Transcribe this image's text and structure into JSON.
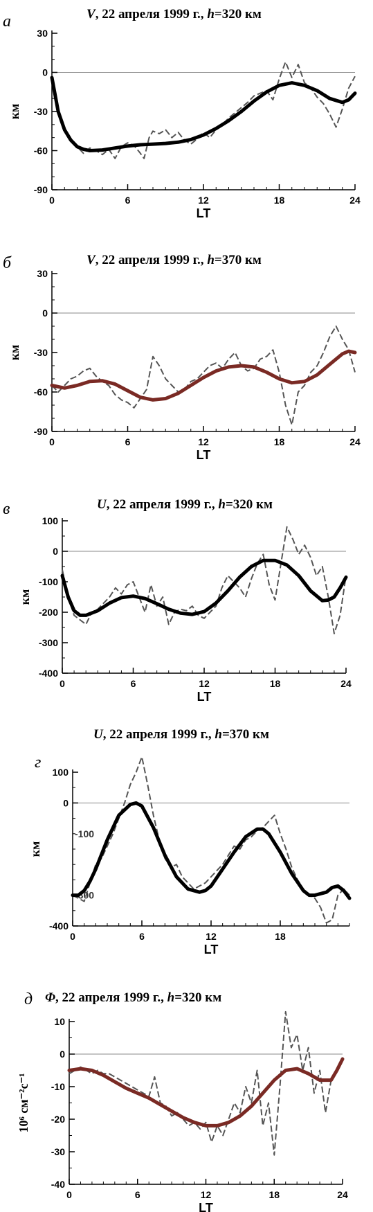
{
  "chart_data": [
    {
      "type": "line",
      "panel_label": "а",
      "title_var": "V",
      "title_rest": ", 22 апреля 1999 г., ",
      "title_h": "h",
      "title_alt": "=320 км",
      "xlabel": "LT",
      "ylabel": "км",
      "xlim": [
        0,
        24
      ],
      "ylim": [
        -90,
        30
      ],
      "xticks": [
        0,
        6,
        12,
        18,
        24
      ],
      "yticks": [
        -90,
        -60,
        -30,
        0,
        30
      ],
      "zero_line": true,
      "fit_color": "#000000",
      "series": [
        {
          "style": "dashed",
          "x": [
            0,
            0.5,
            1,
            1.5,
            2,
            2.5,
            3,
            3.5,
            4,
            4.5,
            5,
            5.5,
            6,
            6.5,
            7,
            7.3,
            7.7,
            8,
            8.5,
            9,
            9.5,
            10,
            10.5,
            11,
            11.5,
            12,
            12.5,
            13,
            13.5,
            14,
            14.5,
            15,
            15.5,
            16,
            16.5,
            17,
            17.5,
            18,
            18.5,
            19,
            19.5,
            20,
            20.5,
            21,
            21.5,
            22,
            22.5,
            23,
            23.5,
            24
          ],
          "y": [
            -2,
            -30,
            -45,
            -52,
            -57,
            -62,
            -58,
            -60,
            -63,
            -59,
            -66,
            -57,
            -54,
            -56,
            -62,
            -66,
            -50,
            -45,
            -47,
            -44,
            -50,
            -46,
            -52,
            -55,
            -51,
            -46,
            -50,
            -44,
            -40,
            -35,
            -31,
            -27,
            -23,
            -18,
            -16,
            -14,
            -21,
            -5,
            8,
            -4,
            6,
            -8,
            -12,
            -19,
            -24,
            -32,
            -42,
            -28,
            -12,
            -3
          ]
        },
        {
          "style": "solid",
          "x": [
            0,
            0.5,
            1,
            1.5,
            2,
            2.5,
            3,
            4,
            5,
            6,
            7,
            8,
            9,
            10,
            11,
            12,
            13,
            14,
            15,
            16,
            17,
            18,
            19,
            20,
            21,
            22,
            23,
            23.5,
            24
          ],
          "y": [
            -4,
            -30,
            -44,
            -52,
            -57,
            -59,
            -60,
            -59.5,
            -58,
            -56.5,
            -55.5,
            -55,
            -54.5,
            -53.5,
            -51.5,
            -48,
            -43,
            -37,
            -30,
            -22,
            -15,
            -10,
            -8,
            -10,
            -14,
            -20,
            -23,
            -21,
            -16
          ]
        }
      ]
    },
    {
      "type": "line",
      "panel_label": "б",
      "title_var": "V",
      "title_rest": ", 22 апреля 1999 г., ",
      "title_h": "h",
      "title_alt": "=370 км",
      "xlabel": "LT",
      "ylabel": "км",
      "xlim": [
        0,
        24
      ],
      "ylim": [
        -90,
        30
      ],
      "xticks": [
        0,
        6,
        12,
        18,
        24
      ],
      "yticks": [
        -90,
        -60,
        -30,
        0,
        30
      ],
      "zero_line": true,
      "fit_color": "#7a2a24",
      "series": [
        {
          "style": "dashed",
          "x": [
            0,
            0.5,
            1,
            1.5,
            2,
            2.5,
            3,
            3.5,
            4,
            4.5,
            5,
            5.5,
            6,
            6.5,
            7,
            7.5,
            8,
            8.5,
            9,
            9.5,
            10,
            10.5,
            11,
            11.5,
            12,
            12.5,
            13,
            13.5,
            14,
            14.5,
            15,
            15.5,
            16,
            16.5,
            17,
            17.5,
            18,
            18.5,
            19,
            19.5,
            20,
            20.5,
            21,
            21.5,
            22,
            22.5,
            23,
            23.5,
            24
          ],
          "y": [
            -55,
            -60,
            -55,
            -50,
            -48,
            -44,
            -42,
            -48,
            -52,
            -55,
            -62,
            -66,
            -68,
            -72,
            -65,
            -58,
            -33,
            -40,
            -50,
            -55,
            -60,
            -58,
            -52,
            -50,
            -45,
            -40,
            -38,
            -42,
            -35,
            -30,
            -40,
            -44,
            -42,
            -35,
            -33,
            -28,
            -45,
            -70,
            -85,
            -60,
            -55,
            -45,
            -40,
            -30,
            -18,
            -10,
            -20,
            -28,
            -45
          ]
        },
        {
          "style": "solid",
          "x": [
            0,
            1,
            2,
            3,
            4,
            5,
            6,
            7,
            8,
            9,
            10,
            11,
            12,
            13,
            14,
            15,
            16,
            17,
            18,
            19,
            20,
            21,
            22,
            23,
            23.5,
            24
          ],
          "y": [
            -55,
            -57,
            -55,
            -52,
            -51.5,
            -54,
            -59,
            -64,
            -66,
            -65,
            -61,
            -55,
            -49,
            -44,
            -41,
            -40,
            -41,
            -45,
            -50,
            -53,
            -52,
            -47,
            -39,
            -31,
            -29,
            -30
          ]
        }
      ]
    },
    {
      "type": "line",
      "panel_label": "в",
      "title_var": "U",
      "title_rest": ", 22 апреля 1999 г., ",
      "title_h": "h",
      "title_alt": "=320 км",
      "xlabel": "LT",
      "ylabel": "км",
      "xlim": [
        0,
        24
      ],
      "ylim": [
        -400,
        100
      ],
      "xticks": [
        0,
        6,
        12,
        18,
        24
      ],
      "yticks": [
        -400,
        -300,
        -200,
        -100,
        0,
        100
      ],
      "zero_line": true,
      "fit_color": "#000000",
      "series": [
        {
          "style": "dashed",
          "x": [
            0,
            0.5,
            1,
            1.5,
            2,
            2.5,
            3,
            3.5,
            4,
            4.5,
            5,
            5.5,
            6,
            6.5,
            7,
            7.5,
            8,
            8.5,
            9,
            9.5,
            10,
            10.5,
            11,
            11.5,
            12,
            12.5,
            13,
            13.5,
            14,
            14.5,
            15,
            15.5,
            16,
            16.5,
            17,
            17.5,
            18,
            18.5,
            19,
            19.5,
            20,
            20.5,
            21,
            21.5,
            22,
            22.5,
            23,
            23.5,
            24
          ],
          "y": [
            -60,
            -150,
            -210,
            -225,
            -240,
            -200,
            -190,
            -170,
            -150,
            -120,
            -140,
            -110,
            -100,
            -150,
            -200,
            -110,
            -180,
            -150,
            -240,
            -200,
            -190,
            -195,
            -180,
            -210,
            -220,
            -200,
            -180,
            -120,
            -80,
            -100,
            -120,
            -150,
            -90,
            -40,
            -10,
            -110,
            -160,
            -40,
            80,
            40,
            -10,
            20,
            -20,
            -80,
            -50,
            -150,
            -270,
            -210,
            -80
          ]
        },
        {
          "style": "solid",
          "x": [
            0,
            0.5,
            1,
            1.5,
            2,
            3,
            4,
            5,
            6,
            7,
            8,
            9,
            10,
            11,
            12,
            13,
            14,
            15,
            16,
            17,
            18,
            19,
            20,
            21,
            22,
            22.5,
            23,
            23.5,
            24
          ],
          "y": [
            -80,
            -150,
            -195,
            -210,
            -210,
            -195,
            -170,
            -152,
            -147,
            -155,
            -172,
            -190,
            -203,
            -207,
            -198,
            -170,
            -130,
            -85,
            -50,
            -30,
            -30,
            -45,
            -80,
            -130,
            -162,
            -160,
            -150,
            -120,
            -85
          ]
        }
      ]
    },
    {
      "type": "line",
      "panel_label": "г",
      "title_var": "U",
      "title_rest": ", 22 апреля 1999 г., ",
      "title_h": "h",
      "title_alt": "=370 км",
      "xlabel": "LT",
      "ylabel": "км",
      "xlim": [
        0,
        24
      ],
      "ylim": [
        -400,
        100
      ],
      "xticks": [
        0,
        6,
        12,
        18
      ],
      "yticks": [
        -400,
        0,
        100
      ],
      "extra_ytick_texts": [
        "-100",
        "-300"
      ],
      "zero_line": true,
      "fit_color": "#000000",
      "series": [
        {
          "style": "dashed",
          "x": [
            0,
            0.5,
            1,
            1.5,
            2,
            2.5,
            3,
            3.5,
            4,
            4.5,
            5,
            5.5,
            6,
            6.5,
            7,
            7.5,
            8,
            8.5,
            9,
            9.5,
            10,
            10.5,
            11,
            11.5,
            12,
            12.5,
            13,
            13.5,
            14,
            14.5,
            15,
            15.5,
            16,
            16.5,
            17,
            17.5,
            18,
            18.5,
            19,
            19.5,
            20,
            20.5,
            21,
            21.5,
            22,
            22.5,
            23,
            23.5,
            24
          ],
          "y": [
            -300,
            -310,
            -320,
            -260,
            -200,
            -180,
            -140,
            -100,
            -50,
            0,
            60,
            100,
            150,
            60,
            -40,
            -120,
            -180,
            -210,
            -200,
            -240,
            -260,
            -280,
            -270,
            -260,
            -240,
            -220,
            -200,
            -170,
            -140,
            -150,
            -120,
            -110,
            -90,
            -80,
            -60,
            -40,
            -100,
            -150,
            -210,
            -250,
            -280,
            -300,
            -310,
            -340,
            -390,
            -380,
            -300,
            -280,
            -300
          ]
        },
        {
          "style": "solid",
          "x": [
            0,
            0.5,
            1,
            1.5,
            2,
            3,
            4,
            5,
            5.5,
            6,
            7,
            8,
            9,
            10,
            11,
            11.5,
            12,
            13,
            14,
            15,
            16,
            16.5,
            17,
            18,
            19,
            20,
            20.5,
            21,
            22,
            22.5,
            23,
            23.5,
            24
          ],
          "y": [
            -300,
            -300,
            -285,
            -255,
            -215,
            -120,
            -40,
            -5,
            0,
            -10,
            -80,
            -170,
            -240,
            -280,
            -290,
            -285,
            -270,
            -215,
            -160,
            -110,
            -85,
            -85,
            -100,
            -160,
            -230,
            -285,
            -300,
            -300,
            -290,
            -275,
            -270,
            -285,
            -310
          ]
        }
      ]
    },
    {
      "type": "line",
      "panel_label": "д",
      "title_var": "Φ",
      "title_rest": ", 22 апреля 1999 г., ",
      "title_h": "h",
      "title_alt": "=320 км",
      "xlabel": "LT",
      "ylabel": "10⁶ см⁻²с⁻¹",
      "xlim": [
        0,
        24
      ],
      "ylim": [
        -40,
        10
      ],
      "xticks": [
        0,
        6,
        12,
        18,
        24
      ],
      "yticks": [
        -40,
        -30,
        -20,
        -10,
        0,
        10
      ],
      "zero_line": true,
      "fit_color": "#7a2a24",
      "series": [
        {
          "style": "dashed",
          "x": [
            0,
            0.5,
            1,
            1.5,
            2,
            2.5,
            3,
            3.5,
            4,
            4.5,
            5,
            5.5,
            6,
            6.5,
            7,
            7.5,
            8,
            8.5,
            9,
            9.5,
            10,
            10.5,
            11,
            11.5,
            12,
            12.5,
            13,
            13.5,
            14,
            14.5,
            15,
            15.5,
            16,
            16.5,
            17,
            17.5,
            18,
            18.5,
            19,
            19.5,
            20,
            20.5,
            21,
            21.5,
            22,
            22.5,
            23,
            23.5,
            24
          ],
          "y": [
            -6,
            -5,
            -4,
            -5,
            -6,
            -5,
            -6,
            -6,
            -7,
            -8,
            -9,
            -10,
            -11,
            -12,
            -13,
            -7,
            -15,
            -16,
            -19,
            -18,
            -20,
            -22,
            -21,
            -23,
            -21,
            -27,
            -22,
            -25,
            -20,
            -15,
            -18,
            -10,
            -15,
            -5,
            -22,
            -15,
            -31,
            -10,
            13,
            2,
            6,
            -5,
            2,
            -12,
            -5,
            -18,
            -8,
            -5,
            -1
          ]
        },
        {
          "style": "solid",
          "x": [
            0,
            1,
            2,
            3,
            4,
            5,
            6,
            7,
            8,
            9,
            10,
            11,
            12,
            13,
            14,
            15,
            16,
            17,
            18,
            19,
            20,
            21,
            22,
            23,
            23.5,
            24
          ],
          "y": [
            -5,
            -4.5,
            -5,
            -6.5,
            -8.5,
            -10.5,
            -12,
            -13.5,
            -15.5,
            -17.5,
            -19.5,
            -21,
            -22,
            -22,
            -21,
            -19,
            -16,
            -12,
            -8,
            -5,
            -4.5,
            -6,
            -8,
            -8,
            -5,
            -1.5
          ]
        }
      ]
    }
  ]
}
